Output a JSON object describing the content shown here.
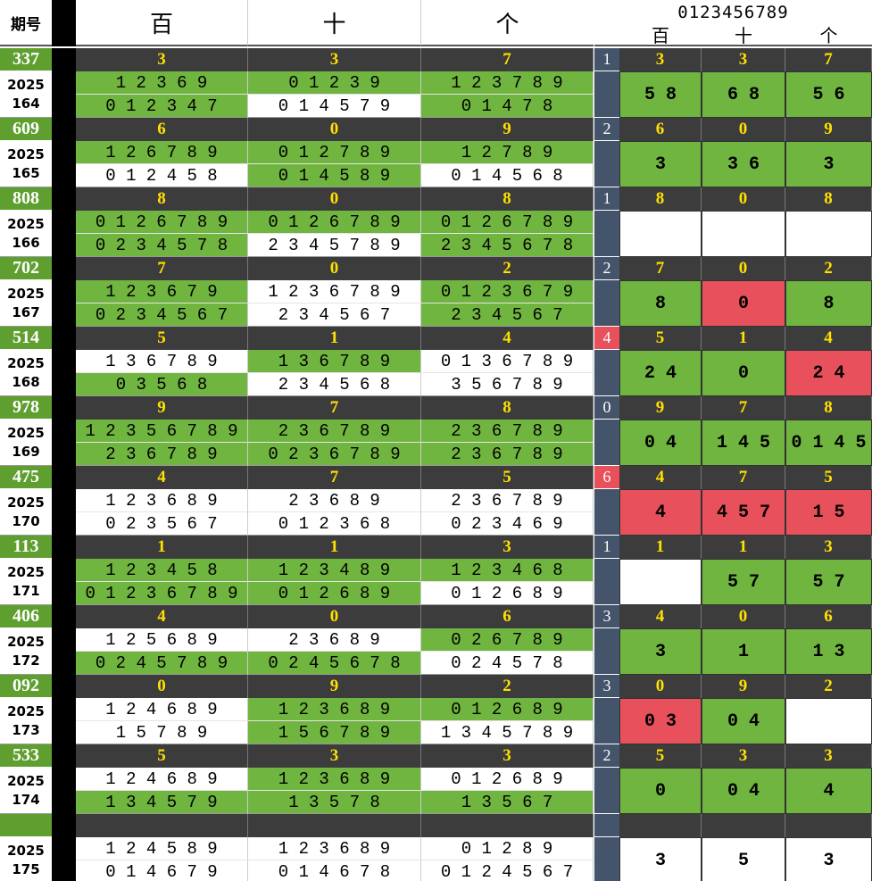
{
  "header": {
    "qihao_label": "期号",
    "col_bai": "百",
    "col_shi": "十",
    "col_ge": "个",
    "digits_label": "0123456789",
    "sub_bai": "百",
    "sub_shi": "十",
    "sub_ge": "个"
  },
  "colors": {
    "green": "#70b53f",
    "dark_band": "#3c3c3c",
    "yellow_text": "#ffe000",
    "slate": "#44546a",
    "red": "#e8505b",
    "white": "#ffffff",
    "number_green": "#5f9f2f"
  },
  "rows": [
    {
      "num": "337",
      "year": "2025",
      "issue": "164",
      "band": [
        "3",
        "3",
        "7"
      ],
      "side": "1",
      "side_red": false,
      "side_band": [
        "3",
        "3",
        "7"
      ],
      "cells": [
        [
          "1 2 3 6 9",
          "0 1 2 3 4 7"
        ],
        [
          "0 1 2 3 9",
          "0 1 4 5 7 9"
        ],
        [
          "1 2 3 7 8 9",
          "0 1 4 7 8"
        ]
      ],
      "cfill": [
        [
          "g",
          "g"
        ],
        [
          "g",
          "w"
        ],
        [
          "g",
          "g"
        ]
      ],
      "right": [
        {
          "t": "5 8",
          "f": "g"
        },
        {
          "t": "6 8",
          "f": "g"
        },
        {
          "t": "5 6",
          "f": "g"
        }
      ]
    },
    {
      "num": "609",
      "year": "2025",
      "issue": "165",
      "band": [
        "6",
        "0",
        "9"
      ],
      "side": "2",
      "side_red": false,
      "side_band": [
        "6",
        "0",
        "9"
      ],
      "cells": [
        [
          "1 2 6 7 8 9",
          "0 1 2 4 5 8"
        ],
        [
          "0 1 2 7 8 9",
          "0 1 4 5 8 9"
        ],
        [
          "1 2 7 8 9",
          "0 1 4 5 6 8"
        ]
      ],
      "cfill": [
        [
          "g",
          "w"
        ],
        [
          "g",
          "g"
        ],
        [
          "g",
          "w"
        ]
      ],
      "right": [
        {
          "t": "3",
          "f": "g"
        },
        {
          "t": "3 6",
          "f": "g"
        },
        {
          "t": "3",
          "f": "g"
        }
      ]
    },
    {
      "num": "808",
      "year": "2025",
      "issue": "166",
      "band": [
        "8",
        "0",
        "8"
      ],
      "side": "1",
      "side_red": false,
      "side_band": [
        "8",
        "0",
        "8"
      ],
      "cells": [
        [
          "0 1 2 6 7 8 9",
          "0 2 3 4 5 7 8"
        ],
        [
          "0 1 2 6 7 8 9",
          "2 3 4 5 7 8 9"
        ],
        [
          "0 1 2 6 7 8 9",
          "2 3 4 5 6 7 8"
        ]
      ],
      "cfill": [
        [
          "g",
          "g"
        ],
        [
          "g",
          "w"
        ],
        [
          "g",
          "g"
        ]
      ],
      "right": [
        {
          "t": "",
          "f": "w"
        },
        {
          "t": "",
          "f": "w"
        },
        {
          "t": "",
          "f": "w"
        }
      ]
    },
    {
      "num": "702",
      "year": "2025",
      "issue": "167",
      "band": [
        "7",
        "0",
        "2"
      ],
      "side": "2",
      "side_red": false,
      "side_band": [
        "7",
        "0",
        "2"
      ],
      "cells": [
        [
          "1 2 3 6 7 9",
          "0 2 3 4 5 6 7"
        ],
        [
          "1 2 3 6 7 8 9",
          "2 3 4 5 6 7"
        ],
        [
          "0 1 2 3 6 7 9",
          "2 3 4 5 6 7"
        ]
      ],
      "cfill": [
        [
          "g",
          "g"
        ],
        [
          "w",
          "w"
        ],
        [
          "g",
          "g"
        ]
      ],
      "right": [
        {
          "t": "8",
          "f": "g"
        },
        {
          "t": "0",
          "f": "r"
        },
        {
          "t": "8",
          "f": "g"
        }
      ]
    },
    {
      "num": "514",
      "year": "2025",
      "issue": "168",
      "band": [
        "5",
        "1",
        "4"
      ],
      "side": "4",
      "side_red": true,
      "side_band": [
        "5",
        "1",
        "4"
      ],
      "cells": [
        [
          "1 3 6 7 8 9",
          "0 3 5 6 8"
        ],
        [
          "1 3 6 7 8 9",
          "2 3 4 5 6 8"
        ],
        [
          "0 1 3 6 7 8 9",
          "3 5 6 7 8 9"
        ]
      ],
      "cfill": [
        [
          "w",
          "g"
        ],
        [
          "g",
          "w"
        ],
        [
          "w",
          "w"
        ]
      ],
      "right": [
        {
          "t": "2 4",
          "f": "g"
        },
        {
          "t": "0",
          "f": "g"
        },
        {
          "t": "2 4",
          "f": "r"
        }
      ]
    },
    {
      "num": "978",
      "year": "2025",
      "issue": "169",
      "band": [
        "9",
        "7",
        "8"
      ],
      "side": "0",
      "side_red": false,
      "side_band": [
        "9",
        "7",
        "8"
      ],
      "cells": [
        [
          "1 2 3 5 6 7 8 9",
          "2 3 6 7 8 9"
        ],
        [
          "2 3 6 7 8 9",
          "0 2 3 6 7 8 9"
        ],
        [
          "2 3 6 7 8 9",
          "2 3 6 7 8 9"
        ]
      ],
      "cfill": [
        [
          "g",
          "g"
        ],
        [
          "g",
          "g"
        ],
        [
          "g",
          "g"
        ]
      ],
      "right": [
        {
          "t": "0 4",
          "f": "g"
        },
        {
          "t": "1 4 5",
          "f": "g"
        },
        {
          "t": "0 1 4 5",
          "f": "g"
        }
      ]
    },
    {
      "num": "475",
      "year": "2025",
      "issue": "170",
      "band": [
        "4",
        "7",
        "5"
      ],
      "side": "6",
      "side_red": true,
      "side_band": [
        "4",
        "7",
        "5"
      ],
      "cells": [
        [
          "1 2 3 6 8 9",
          "0 2 3 5 6 7"
        ],
        [
          "2 3 6 8 9",
          "0 1 2 3 6 8"
        ],
        [
          "2 3 6 7 8 9",
          "0 2 3 4 6 9"
        ]
      ],
      "cfill": [
        [
          "w",
          "w"
        ],
        [
          "w",
          "w"
        ],
        [
          "w",
          "w"
        ]
      ],
      "right": [
        {
          "t": "4",
          "f": "r"
        },
        {
          "t": "4 5 7",
          "f": "r"
        },
        {
          "t": "1 5",
          "f": "r"
        }
      ]
    },
    {
      "num": "113",
      "year": "2025",
      "issue": "171",
      "band": [
        "1",
        "1",
        "3"
      ],
      "side": "1",
      "side_red": false,
      "side_band": [
        "1",
        "1",
        "3"
      ],
      "cells": [
        [
          "1 2 3 4 5 8",
          "0 1 2 3 6 7 8 9"
        ],
        [
          "1 2 3 4 8 9",
          "0 1 2 6 8 9"
        ],
        [
          "1 2 3 4 6 8",
          "0 1 2 6 8 9"
        ]
      ],
      "cfill": [
        [
          "g",
          "g"
        ],
        [
          "g",
          "g"
        ],
        [
          "g",
          "w"
        ]
      ],
      "right": [
        {
          "t": "",
          "f": "w"
        },
        {
          "t": "5 7",
          "f": "g"
        },
        {
          "t": "5 7",
          "f": "g"
        }
      ]
    },
    {
      "num": "406",
      "year": "2025",
      "issue": "172",
      "band": [
        "4",
        "0",
        "6"
      ],
      "side": "3",
      "side_red": false,
      "side_band": [
        "4",
        "0",
        "6"
      ],
      "cells": [
        [
          "1 2 5 6 8 9",
          "0 2 4 5 7 8 9"
        ],
        [
          "2 3 6 8 9",
          "0 2 4 5 6 7 8"
        ],
        [
          "0 2 6 7 8 9",
          "0 2 4 5 7 8"
        ]
      ],
      "cfill": [
        [
          "w",
          "g"
        ],
        [
          "w",
          "g"
        ],
        [
          "g",
          "w"
        ]
      ],
      "right": [
        {
          "t": "3",
          "f": "g"
        },
        {
          "t": "1",
          "f": "g"
        },
        {
          "t": "1 3",
          "f": "g"
        }
      ]
    },
    {
      "num": "092",
      "year": "2025",
      "issue": "173",
      "band": [
        "0",
        "9",
        "2"
      ],
      "side": "3",
      "side_red": false,
      "side_band": [
        "0",
        "9",
        "2"
      ],
      "cells": [
        [
          "1 2 4 6 8 9",
          "1 5 7 8 9"
        ],
        [
          "1 2 3 6 8 9",
          "1 5 6 7 8 9"
        ],
        [
          "0 1 2 6 8 9",
          "1 3 4 5 7 8 9"
        ]
      ],
      "cfill": [
        [
          "w",
          "w"
        ],
        [
          "g",
          "g"
        ],
        [
          "g",
          "w"
        ]
      ],
      "right": [
        {
          "t": "0 3",
          "f": "r"
        },
        {
          "t": "0 4",
          "f": "g"
        },
        {
          "t": "",
          "f": "w"
        }
      ]
    },
    {
      "num": "533",
      "year": "2025",
      "issue": "174",
      "band": [
        "5",
        "3",
        "3"
      ],
      "side": "2",
      "side_red": false,
      "side_band": [
        "5",
        "3",
        "3"
      ],
      "cells": [
        [
          "1 2 4 6 8 9",
          "1 3 4 5 7 9"
        ],
        [
          "1 2 3 6 8 9",
          "1 3 5 7 8"
        ],
        [
          "0 1 2 6 8 9",
          "1 3 5 6 7"
        ]
      ],
      "cfill": [
        [
          "w",
          "g"
        ],
        [
          "g",
          "g"
        ],
        [
          "w",
          "g"
        ]
      ],
      "right": [
        {
          "t": "0",
          "f": "g"
        },
        {
          "t": "0 4",
          "f": "g"
        },
        {
          "t": "4",
          "f": "g"
        }
      ]
    },
    {
      "num": "",
      "year": "2025",
      "issue": "175",
      "band": [
        "",
        "",
        ""
      ],
      "side": "",
      "side_red": false,
      "side_band": [
        "",
        "",
        ""
      ],
      "cells": [
        [
          "1 2 4 5 8 9",
          "0 1 4 6 7 9"
        ],
        [
          "1 2 3 6 8 9",
          "0 1 4 6 7 8"
        ],
        [
          "0 1 2 8 9",
          "0 1 2 4 5 6 7"
        ]
      ],
      "cfill": [
        [
          "w",
          "w"
        ],
        [
          "w",
          "w"
        ],
        [
          "w",
          "w"
        ]
      ],
      "right": [
        {
          "t": "3",
          "f": "w"
        },
        {
          "t": "5",
          "f": "w"
        },
        {
          "t": "3",
          "f": "w"
        }
      ]
    }
  ]
}
